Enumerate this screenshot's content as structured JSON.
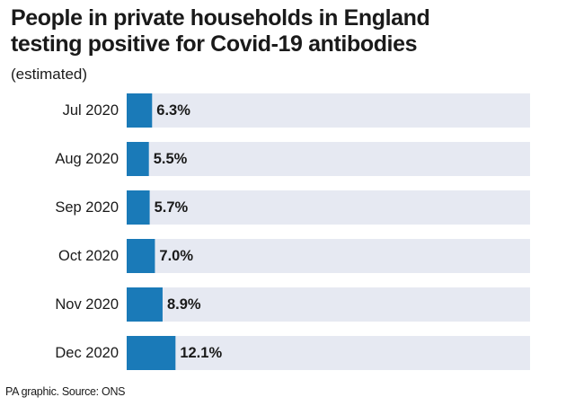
{
  "chart_data": {
    "type": "bar",
    "orientation": "horizontal",
    "title_lines": [
      "People in private households in England",
      "testing positive for Covid-19 antibodies"
    ],
    "subtitle": "(estimated)",
    "categories": [
      "Jul 2020",
      "Aug 2020",
      "Sep 2020",
      "Oct 2020",
      "Nov 2020",
      "Dec 2020"
    ],
    "values": [
      6.3,
      5.5,
      5.7,
      7.0,
      8.9,
      12.1
    ],
    "value_labels": [
      "6.3%",
      "5.5%",
      "5.7%",
      "7.0%",
      "8.9%",
      "12.1%"
    ],
    "xlim": [
      0,
      100
    ],
    "xlabel": "",
    "ylabel": "",
    "grid": false,
    "colors": {
      "bar": "#1a7ab8",
      "track": "#e6e9f2",
      "text": "#1a1a1a"
    }
  },
  "footer": "PA graphic. Source: ONS"
}
